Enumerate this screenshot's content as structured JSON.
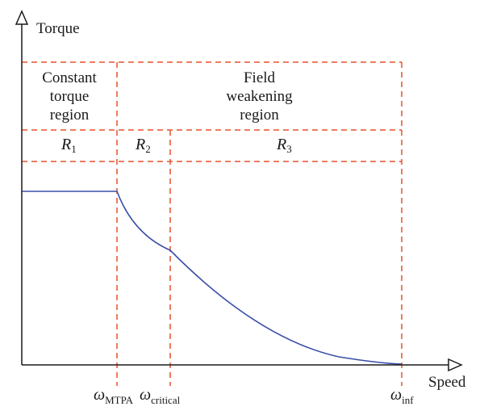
{
  "axes": {
    "y_label": "Torque",
    "x_label": "Speed"
  },
  "regions": {
    "constant": [
      "Constant",
      "torque",
      "region"
    ],
    "field": [
      "Field",
      "weakening",
      "region"
    ]
  },
  "subregions": [
    {
      "symbol": "R",
      "subscript": "1"
    },
    {
      "symbol": "R",
      "subscript": "2"
    },
    {
      "symbol": "R",
      "subscript": "3"
    }
  ],
  "speed_marks": [
    {
      "symbol": "ω",
      "subscript": "MTPA"
    },
    {
      "symbol": "ω",
      "subscript": "critical"
    },
    {
      "symbol": "ω",
      "subscript": "inf"
    }
  ],
  "colors": {
    "axis": "#1a1a1a",
    "dashed": "#e8502b",
    "curve": "#3a4fa8"
  }
}
